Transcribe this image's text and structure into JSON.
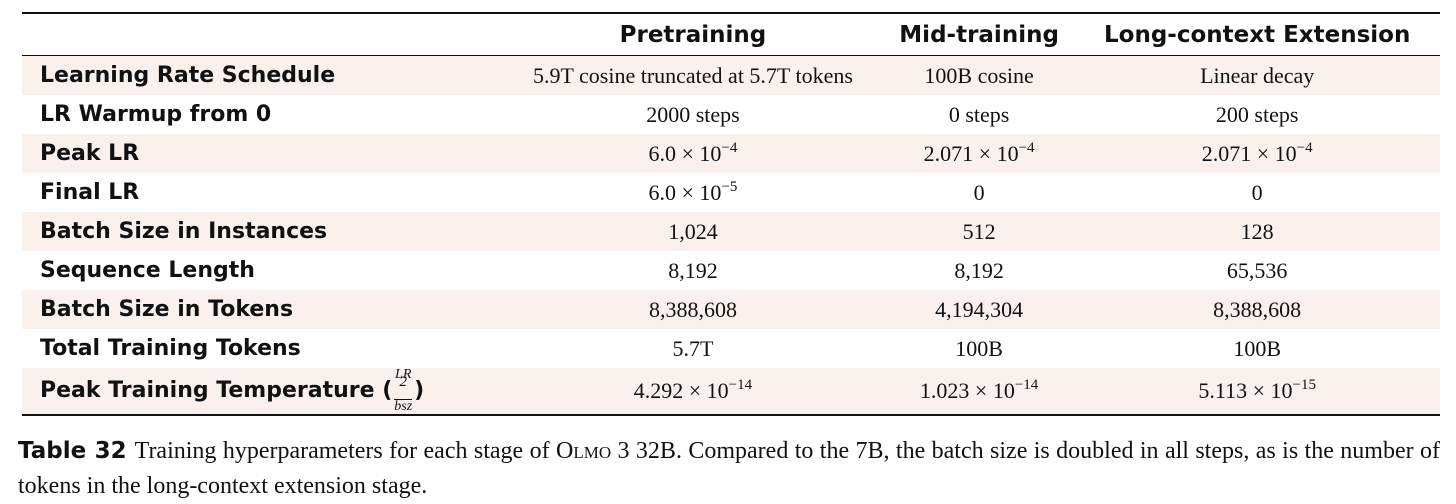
{
  "table": {
    "header": [
      "Pretraining",
      "Mid-training",
      "Long-context Extension"
    ],
    "rows": [
      {
        "label": "Learning Rate Schedule",
        "values": [
          "5.9T cosine truncated at 5.7T tokens",
          "100B cosine",
          "Linear decay"
        ]
      },
      {
        "label": "LR Warmup from 0",
        "values": [
          "2000 steps",
          "0 steps",
          "200 steps"
        ]
      },
      {
        "label": "Peak LR",
        "values": [
          {
            "base": "6.0 × 10",
            "exp": "−4"
          },
          {
            "base": "2.071 × 10",
            "exp": "−4"
          },
          {
            "base": "2.071 × 10",
            "exp": "−4"
          }
        ]
      },
      {
        "label": "Final LR",
        "values": [
          {
            "base": "6.0 × 10",
            "exp": "−5"
          },
          "0",
          "0"
        ]
      },
      {
        "label": "Batch Size in Instances",
        "values": [
          "1,024",
          "512",
          "128"
        ]
      },
      {
        "label": "Sequence Length",
        "values": [
          "8,192",
          "8,192",
          "65,536"
        ]
      },
      {
        "label": "Batch Size in Tokens",
        "values": [
          "8,388,608",
          "4,194,304",
          "8,388,608"
        ]
      },
      {
        "label": "Total Training Tokens",
        "values": [
          "5.7T",
          "100B",
          "100B"
        ]
      },
      {
        "label": {
          "text": "Peak Training Temperature",
          "open": "(",
          "num": "LR",
          "sup": "2",
          "den": "bsz",
          "close": ")"
        },
        "values": [
          {
            "base": "4.292 × 10",
            "exp": "−14"
          },
          {
            "base": "1.023 × 10",
            "exp": "−14"
          },
          {
            "base": "5.113 × 10",
            "exp": "−15"
          }
        ]
      }
    ]
  },
  "caption": {
    "label": "Table 32",
    "before": "Training hyperparameters for each stage of ",
    "name": "Olmo",
    "after": " 3 32B. Compared to the 7B, the batch size is doubled in all steps, as is the number of tokens in the long-context extension stage."
  }
}
